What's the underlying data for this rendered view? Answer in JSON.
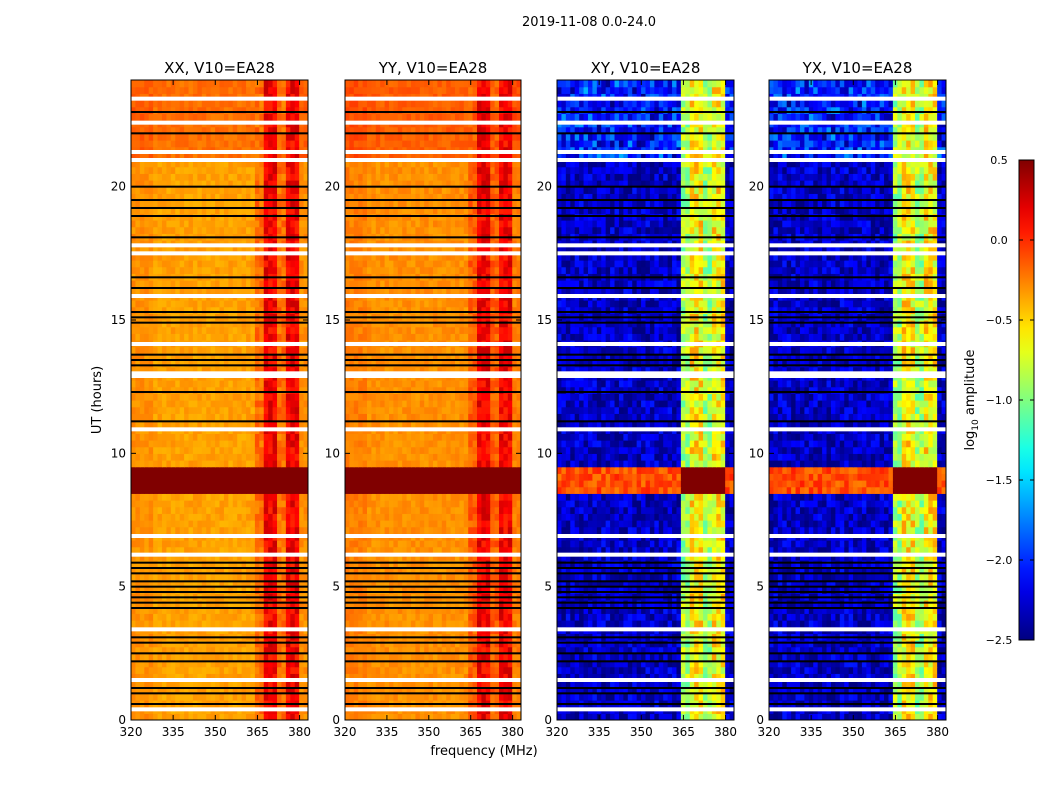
{
  "figure": {
    "suptitle": "2019-11-08 0.0-24.0"
  },
  "colormap": "jet",
  "chart_data": {
    "type": "heatmap",
    "ylabel": "UT (hours)",
    "xlabel": "frequency (MHz)",
    "ylim": [
      0,
      24
    ],
    "xlim": [
      320,
      383
    ],
    "xticks": [
      320,
      335,
      350,
      365,
      380
    ],
    "yticks": [
      0,
      5,
      10,
      15,
      20
    ],
    "colorbar": {
      "label_main": "log",
      "label_sub": "10",
      "label_rest": " amplitude",
      "vmin": -2.5,
      "vmax": 0.5,
      "ticks": [
        0.5,
        0.0,
        -0.5,
        -1.0,
        -1.5,
        -2.0,
        -2.5
      ],
      "tick_labels": [
        "0.5",
        "0.0",
        "−0.5",
        "−1.0",
        "−1.5",
        "−2.0",
        "−2.5"
      ]
    },
    "rfi_band_mhz": [
      363.5,
      380.5
    ],
    "flare_hours": [
      8.6,
      9.4
    ],
    "flagged_hours_white": [
      0.4,
      1.5,
      3.4,
      6.2,
      6.9,
      10.9,
      12.9,
      13.0,
      14.1,
      15.9,
      17.8,
      17.5,
      21.0,
      21.3,
      22.4,
      23.3
    ],
    "flagged_hours_black": [
      0.6,
      1.0,
      1.2,
      2.2,
      2.5,
      2.9,
      3.1,
      4.2,
      4.4,
      4.6,
      4.8,
      5.0,
      5.2,
      5.5,
      5.7,
      5.9,
      11.2,
      12.3,
      13.3,
      13.5,
      13.7,
      14.9,
      15.1,
      15.3,
      16.2,
      16.6,
      18.1,
      18.9,
      19.2,
      19.5,
      20.0,
      22.0,
      22.8
    ],
    "panels": [
      {
        "title": "XX, V10=EA28",
        "kind": "parallel",
        "level": -0.35,
        "rfi_level": 0.15
      },
      {
        "title": "YY, V10=EA28",
        "kind": "parallel",
        "level": -0.3,
        "rfi_level": 0.15
      },
      {
        "title": "XY, V10=EA28",
        "kind": "cross",
        "level": -2.3,
        "rfi_level": -0.6
      },
      {
        "title": "YX, V10=EA28",
        "kind": "cross",
        "level": -2.3,
        "rfi_level": -0.6
      }
    ]
  }
}
